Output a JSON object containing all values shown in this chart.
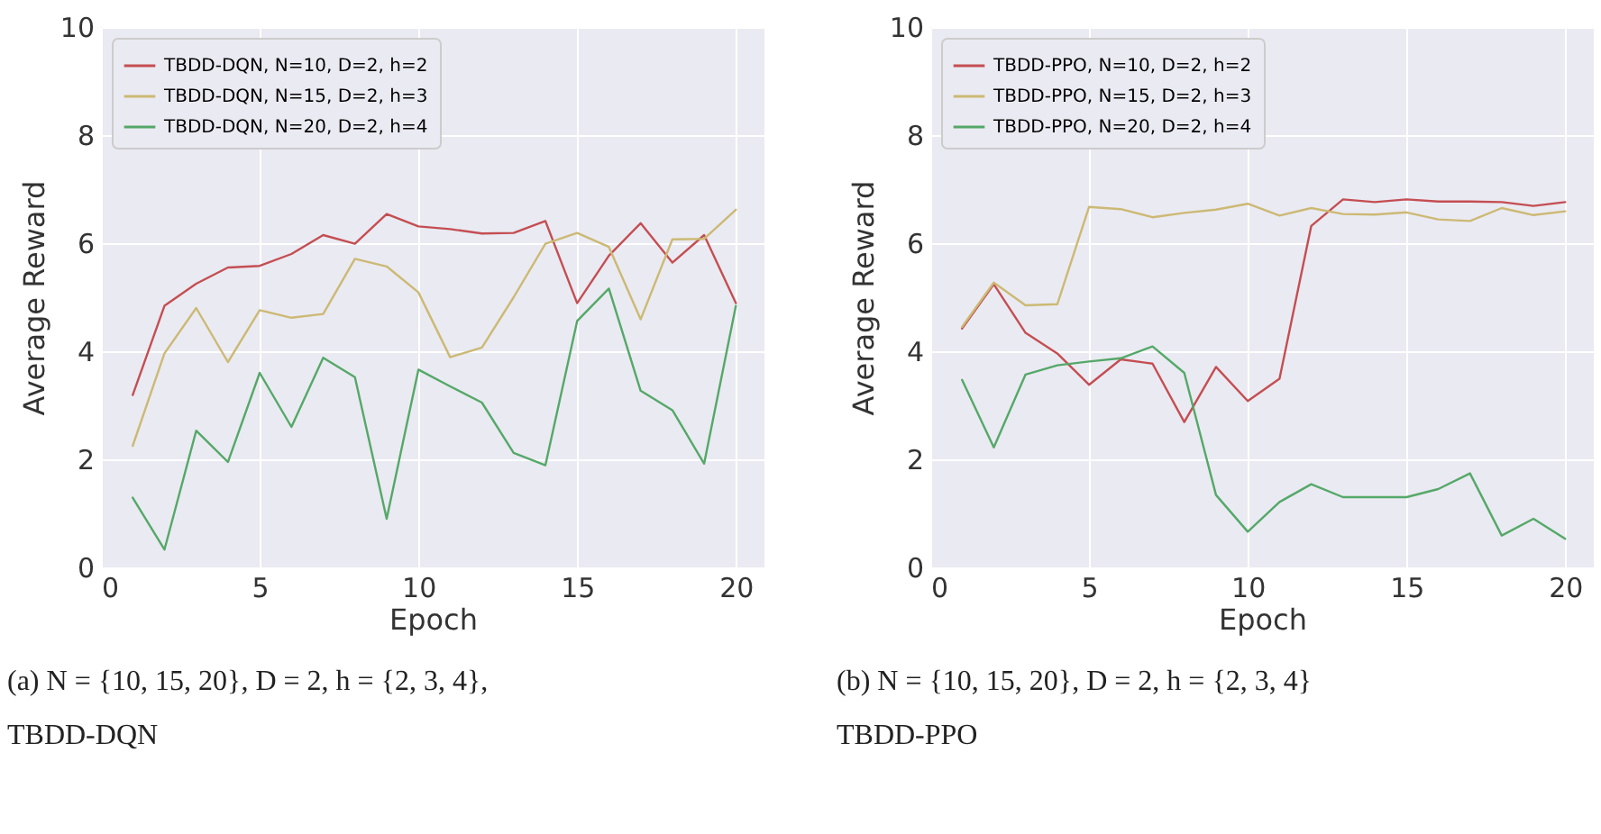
{
  "chart_data": [
    {
      "type": "line",
      "xlabel": "Epoch",
      "ylabel": "Average Reward",
      "x": [
        1,
        2,
        3,
        4,
        5,
        6,
        7,
        8,
        9,
        10,
        11,
        12,
        13,
        14,
        15,
        16,
        17,
        18,
        19,
        20
      ],
      "xlim": [
        0,
        20.9
      ],
      "xticks": [
        0,
        5,
        10,
        15,
        20
      ],
      "ylim": [
        0,
        10
      ],
      "yticks": [
        0,
        2,
        4,
        6,
        8,
        10
      ],
      "grid": true,
      "legend": "top left",
      "series": [
        {
          "name": "TBDD-DQN, N=10, D=2, h=2",
          "color": "#c44e52",
          "values": [
            3.19,
            4.84,
            5.25,
            5.55,
            5.58,
            5.8,
            6.15,
            5.99,
            6.54,
            6.31,
            6.26,
            6.18,
            6.19,
            6.41,
            4.89,
            5.77,
            6.37,
            5.64,
            6.15,
            4.89
          ]
        },
        {
          "name": "TBDD-DQN, N=15, D=2, h=3",
          "color": "#ccb974",
          "values": [
            2.25,
            3.96,
            4.8,
            3.8,
            4.76,
            4.62,
            4.69,
            5.71,
            5.57,
            5.09,
            3.89,
            4.07,
            5.0,
            5.99,
            6.19,
            5.93,
            4.59,
            6.07,
            6.08,
            6.62
          ]
        },
        {
          "name": "TBDD-DQN, N=20, D=2, h=4",
          "color": "#55a868",
          "values": [
            1.29,
            0.33,
            2.53,
            1.95,
            3.6,
            2.6,
            3.88,
            3.52,
            0.9,
            3.66,
            3.35,
            3.05,
            2.12,
            1.89,
            4.56,
            5.16,
            3.27,
            2.91,
            1.92,
            4.84
          ]
        }
      ],
      "annotations": [
        "(a) N = {10, 15, 20}, D = 2, h = {2, 3, 4},",
        "TBDD-DQN"
      ]
    },
    {
      "type": "line",
      "xlabel": "Epoch",
      "ylabel": "Average Reward",
      "x": [
        1,
        2,
        3,
        4,
        5,
        6,
        7,
        8,
        9,
        10,
        11,
        12,
        13,
        14,
        15,
        16,
        17,
        18,
        19,
        20
      ],
      "xlim": [
        0,
        20.9
      ],
      "xticks": [
        0,
        5,
        10,
        15,
        20
      ],
      "ylim": [
        0,
        10
      ],
      "yticks": [
        0,
        2,
        4,
        6,
        8,
        10
      ],
      "grid": true,
      "legend": "top left",
      "series": [
        {
          "name": "TBDD-PPO, N=10, D=2, h=2",
          "color": "#c44e52",
          "values": [
            4.42,
            5.24,
            4.34,
            3.96,
            3.38,
            3.85,
            3.77,
            2.69,
            3.71,
            3.08,
            3.49,
            6.32,
            6.81,
            6.76,
            6.81,
            6.77,
            6.77,
            6.76,
            6.69,
            6.76
          ]
        },
        {
          "name": "TBDD-PPO, N=15, D=2, h=3",
          "color": "#ccb974",
          "values": [
            4.45,
            5.27,
            4.85,
            4.87,
            6.67,
            6.63,
            6.48,
            6.56,
            6.62,
            6.73,
            6.51,
            6.65,
            6.54,
            6.53,
            6.57,
            6.44,
            6.41,
            6.65,
            6.52,
            6.59
          ]
        },
        {
          "name": "TBDD-PPO, N=20, D=2, h=4",
          "color": "#55a868",
          "values": [
            3.47,
            2.22,
            3.57,
            3.74,
            3.81,
            3.87,
            4.09,
            3.6,
            1.34,
            0.66,
            1.21,
            1.54,
            1.3,
            1.3,
            1.3,
            1.45,
            1.74,
            0.59,
            0.9,
            0.53
          ]
        }
      ],
      "annotations": [
        "(b) N = {10, 15, 20}, D = 2, h = {2, 3, 4}",
        "TBDD-PPO"
      ]
    }
  ]
}
